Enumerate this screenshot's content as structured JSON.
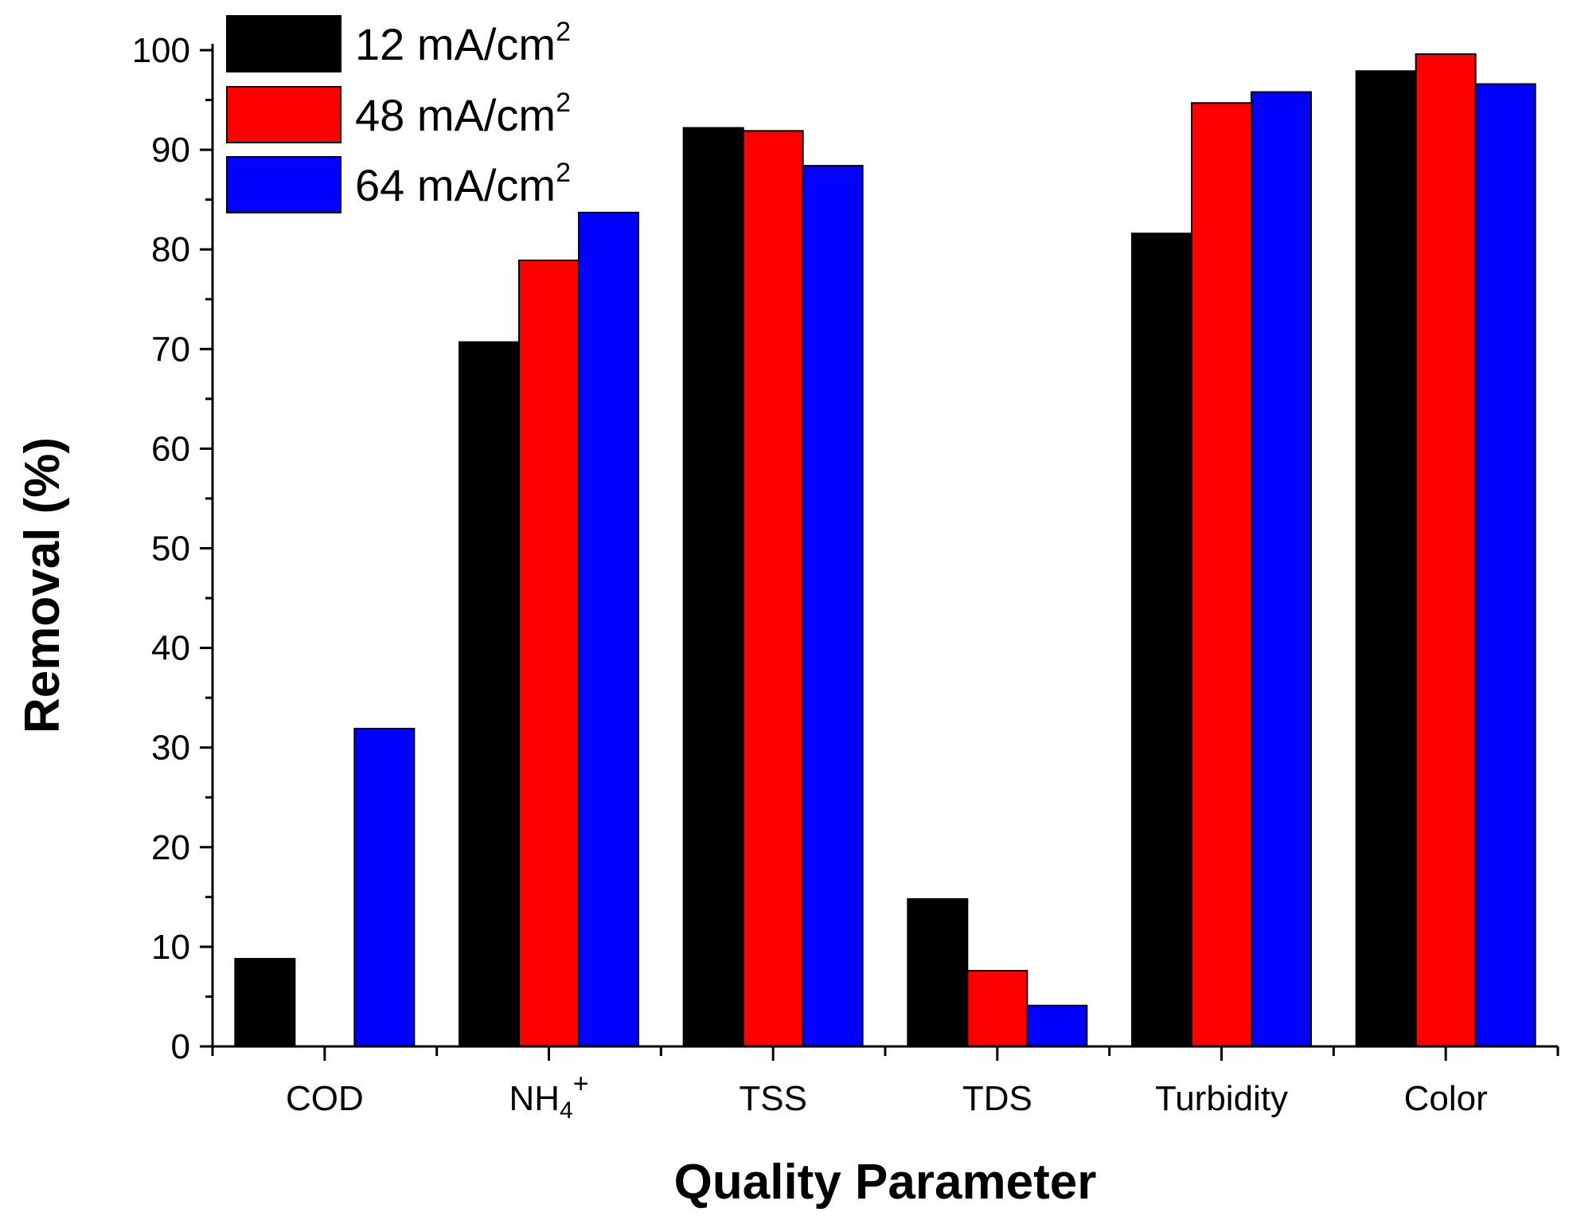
{
  "chart_data": {
    "type": "bar",
    "categories": [
      "COD",
      "NH4+",
      "TSS",
      "TDS",
      "Turbidity",
      "Color"
    ],
    "category_labels": [
      {
        "base": "COD",
        "sub": "",
        "sup": ""
      },
      {
        "base": "NH",
        "sub": "4",
        "sup": "+"
      },
      {
        "base": "TSS",
        "sub": "",
        "sup": ""
      },
      {
        "base": "TDS",
        "sub": "",
        "sup": ""
      },
      {
        "base": "Turbidity",
        "sub": "",
        "sup": ""
      },
      {
        "base": "Color",
        "sub": "",
        "sup": ""
      }
    ],
    "series": [
      {
        "name": "12 mA/cm2",
        "label_base": "12 mA/cm",
        "label_sup": "2",
        "color": "#000000",
        "values": [
          8.8,
          70.7,
          92.2,
          14.8,
          81.6,
          97.9
        ]
      },
      {
        "name": "48 mA/cm2",
        "label_base": "48 mA/cm",
        "label_sup": "2",
        "color": "#ff0000",
        "values": [
          0,
          78.9,
          91.9,
          7.6,
          94.7,
          99.6
        ]
      },
      {
        "name": "64 mA/cm2",
        "label_base": "64 mA/cm",
        "label_sup": "2",
        "color": "#0000ff",
        "values": [
          31.9,
          83.7,
          88.4,
          4.1,
          95.8,
          96.6
        ]
      }
    ],
    "xlabel": "Quality Parameter",
    "ylabel": "Removal (%)",
    "ylim": [
      0,
      100
    ],
    "yticks": [
      0,
      10,
      20,
      30,
      40,
      50,
      60,
      70,
      80,
      90,
      100
    ],
    "grid": false,
    "legend_position": "top-left"
  }
}
